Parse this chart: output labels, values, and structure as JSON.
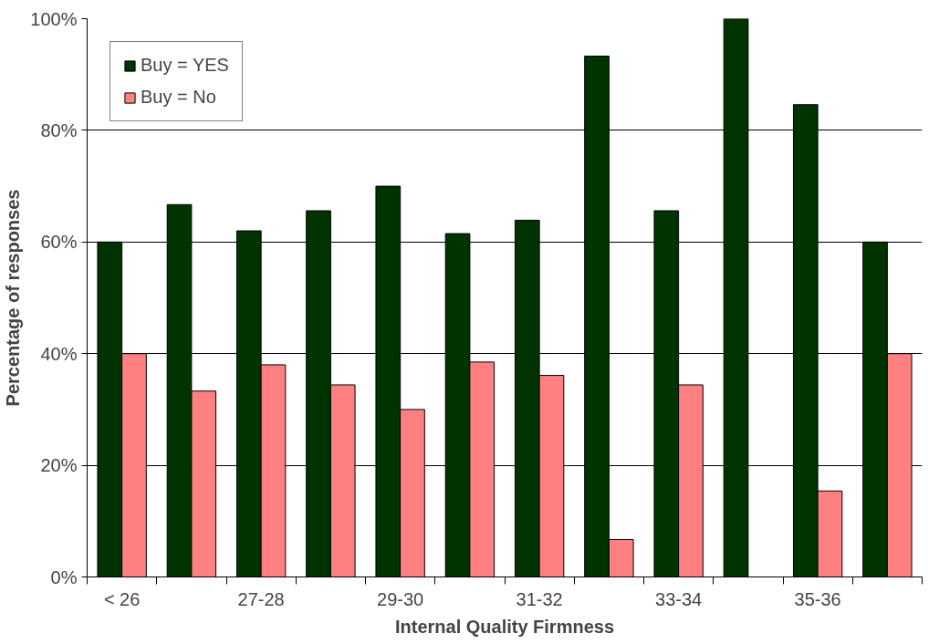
{
  "chart_data": {
    "type": "bar",
    "xlabel": "Internal Quality Firmness",
    "ylabel": "Percentage of responses",
    "categories": [
      "< 26",
      null,
      "27-28",
      null,
      "29-30",
      null,
      "31-32",
      null,
      "33-34",
      null,
      "35-36",
      null
    ],
    "series": [
      {
        "name": "Buy = YES",
        "color": "#003300",
        "values": [
          60,
          66.7,
          62,
          65.6,
          70,
          61.5,
          63.9,
          93.3,
          65.6,
          100,
          84.6,
          60
        ]
      },
      {
        "name": "Buy = No",
        "color": "#ff8080",
        "values": [
          40,
          33.3,
          38,
          34.4,
          30,
          38.5,
          36.1,
          6.7,
          34.4,
          0,
          15.4,
          40
        ]
      }
    ],
    "ylim": [
      0,
      100
    ],
    "yticks": [
      {
        "value": 0,
        "label": "0%"
      },
      {
        "value": 20,
        "label": "20%"
      },
      {
        "value": 40,
        "label": "40%"
      },
      {
        "value": 60,
        "label": "60%"
      },
      {
        "value": 80,
        "label": "80%"
      },
      {
        "value": 100,
        "label": "100%"
      }
    ],
    "grid": "y",
    "legend": "top left"
  }
}
